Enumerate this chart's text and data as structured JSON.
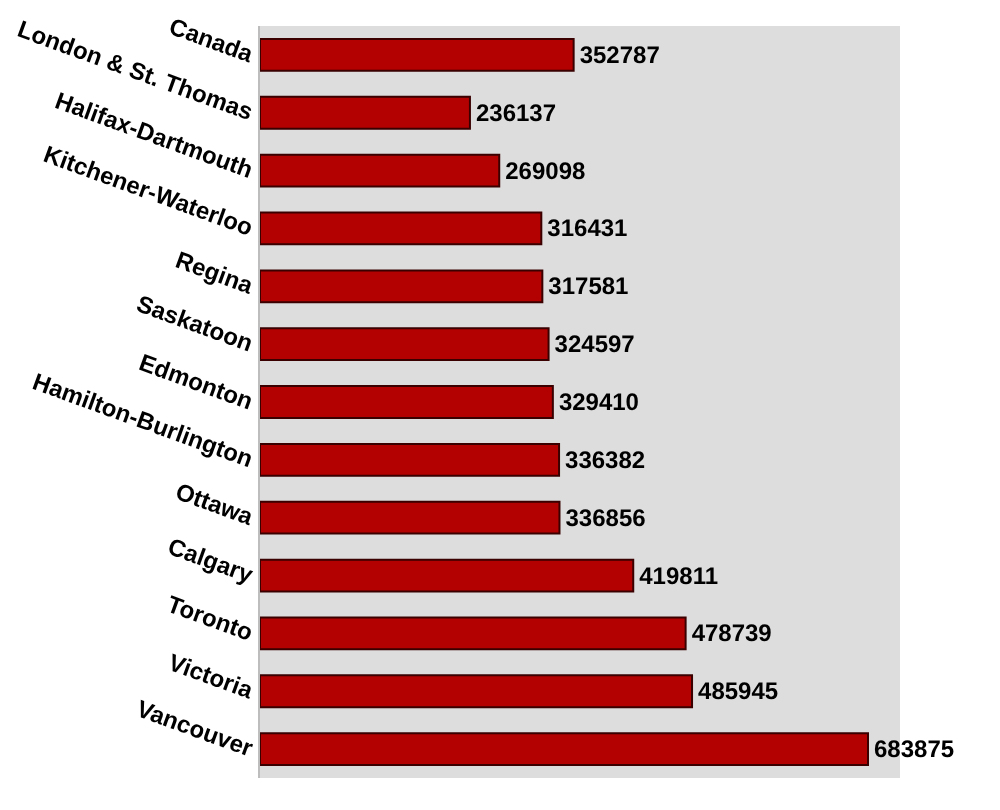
{
  "chart_data": {
    "type": "bar",
    "orientation": "horizontal",
    "categories": [
      "Canada",
      "London & St. Thomas",
      "Halifax-Dartmouth",
      "Kitchener-Waterloo",
      "Regina",
      "Saskatoon",
      "Edmonton",
      "Hamilton-Burlington",
      "Ottawa",
      "Calgary",
      "Toronto",
      "Victoria",
      "Vancouver"
    ],
    "values": [
      352787,
      236137,
      269098,
      316431,
      317581,
      324597,
      329410,
      336382,
      336856,
      419811,
      478739,
      485945,
      683875
    ],
    "color": "#b30000",
    "data_labels": true,
    "tick_labels": "y"
  }
}
